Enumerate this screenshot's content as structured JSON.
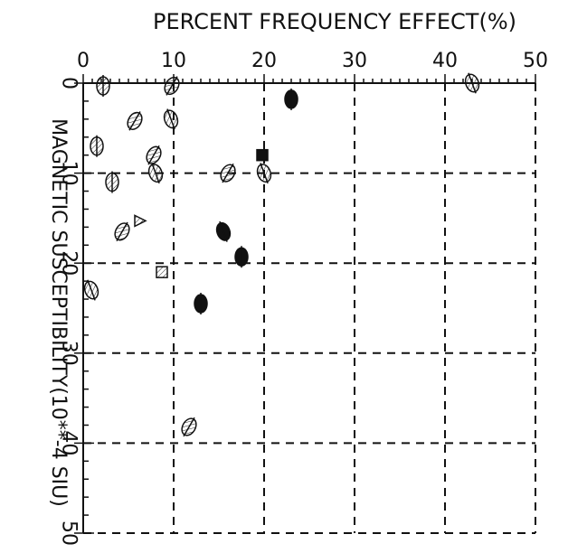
{
  "chart_data": {
    "type": "scatter",
    "title": "",
    "xlabel": "PERCENT FREQUENCY EFFECT(%)",
    "ylabel": "MAGNETIC SUSCEPTIBILITY(10**-4 SIU)",
    "x_position": "top",
    "y_inverted": true,
    "xlim": [
      0,
      50
    ],
    "ylim": [
      0,
      50
    ],
    "x_ticks": [
      0,
      10,
      20,
      30,
      40,
      50
    ],
    "y_ticks": [
      0,
      10,
      20,
      30,
      40,
      50
    ],
    "grid": "dashed at major ticks",
    "legend": "none",
    "points": [
      {
        "x": 2.2,
        "y": 0.3,
        "marker": "hatched-ellipse"
      },
      {
        "x": 9.8,
        "y": 0.3,
        "marker": "hatched-ellipse"
      },
      {
        "x": 43,
        "y": 0,
        "marker": "hatched-ellipse"
      },
      {
        "x": 23,
        "y": 1.8,
        "marker": "filled-ellipse"
      },
      {
        "x": 5.7,
        "y": 4.2,
        "marker": "hatched-ellipse"
      },
      {
        "x": 9.7,
        "y": 4.0,
        "marker": "hatched-ellipse"
      },
      {
        "x": 1.5,
        "y": 7.0,
        "marker": "hatched-ellipse"
      },
      {
        "x": 7.8,
        "y": 8.0,
        "marker": "hatched-ellipse"
      },
      {
        "x": 8.0,
        "y": 10.0,
        "marker": "hatched-ellipse"
      },
      {
        "x": 3.2,
        "y": 11.0,
        "marker": "hatched-ellipse"
      },
      {
        "x": 16.0,
        "y": 10.0,
        "marker": "hatched-ellipse"
      },
      {
        "x": 20.0,
        "y": 10.0,
        "marker": "hatched-ellipse"
      },
      {
        "x": 19.8,
        "y": 8.0,
        "marker": "filled-square"
      },
      {
        "x": 4.3,
        "y": 16.5,
        "marker": "hatched-ellipse"
      },
      {
        "x": 15.5,
        "y": 16.5,
        "marker": "filled-ellipse"
      },
      {
        "x": 17.5,
        "y": 19.3,
        "marker": "filled-ellipse"
      },
      {
        "x": 8.7,
        "y": 21.0,
        "marker": "hatched-square"
      },
      {
        "x": 0.9,
        "y": 23.0,
        "marker": "hatched-ellipse"
      },
      {
        "x": 13.0,
        "y": 24.5,
        "marker": "filled-ellipse"
      },
      {
        "x": 11.7,
        "y": 38.2,
        "marker": "hatched-ellipse"
      },
      {
        "x": 6.2,
        "y": 15.3,
        "marker": "hatched-triangle"
      }
    ]
  }
}
